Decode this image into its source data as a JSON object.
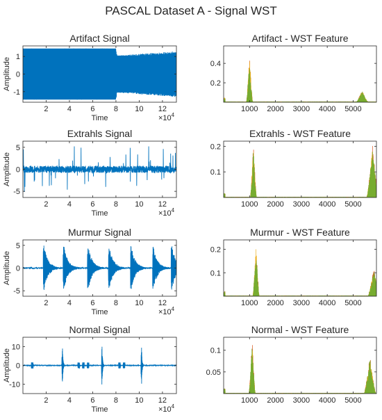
{
  "figure_title": "PASCAL Dataset A - Signal WST",
  "colors": {
    "signal": "#0072BD",
    "wst_main": "#77AC30",
    "wst_alt": "#EDB120",
    "wst_red": "#D95319",
    "axes": "#262626",
    "background": "#ffffff"
  },
  "chart_data": [
    {
      "id": "artifact-signal",
      "type": "line",
      "title": "Artifact Signal",
      "xlabel": "Time",
      "ylabel": "Amplitude",
      "x_exponent": "4",
      "xlim": [
        0,
        13.2
      ],
      "ylim": [
        -1.6,
        1.6
      ],
      "xticks": [
        2,
        4,
        6,
        8,
        10,
        12
      ],
      "xticklabels": [
        "2",
        "4",
        "6",
        "8",
        "10",
        "12"
      ],
      "yticks": [
        -1,
        0,
        1
      ],
      "yticklabels": [
        "-1",
        "0",
        "1"
      ],
      "series": [
        {
          "style": "dense oscillation",
          "envelope": [
            [
              0,
              1.45
            ],
            [
              8,
              1.45
            ],
            [
              8.1,
              1.05
            ],
            [
              13.2,
              1.3
            ]
          ]
        }
      ]
    },
    {
      "id": "artifact-wst",
      "type": "line",
      "title": "Artifact - WST Feature",
      "xlabel": "",
      "ylabel": "",
      "xlim": [
        0,
        5900
      ],
      "ylim": [
        0,
        0.58
      ],
      "xticks": [
        1000,
        2000,
        3000,
        4000,
        5000
      ],
      "xticklabels": [
        "1000",
        "2000",
        "3000",
        "4000",
        "5000"
      ],
      "yticks": [
        0.2,
        0.4
      ],
      "yticklabels": [
        "0.2",
        "0.4"
      ],
      "series": [
        {
          "peaks": [
            [
              1000,
              0.48
            ],
            [
              5350,
              0.12
            ]
          ]
        }
      ]
    },
    {
      "id": "extrahls-signal",
      "type": "line",
      "title": "Extrahls Signal",
      "xlabel": "Time",
      "ylabel": "Amplitude",
      "x_exponent": "4",
      "xlim": [
        0,
        13.2
      ],
      "ylim": [
        -6.4,
        6.4
      ],
      "xticks": [
        2,
        4,
        6,
        8,
        10,
        12
      ],
      "xticklabels": [
        "2",
        "4",
        "6",
        "8",
        "10",
        "12"
      ],
      "yticks": [
        -5,
        0,
        5
      ],
      "yticklabels": [
        "-5",
        "0",
        "5"
      ],
      "series": [
        {
          "spike_amplitude": 5.5
        }
      ]
    },
    {
      "id": "extrahls-wst",
      "type": "line",
      "title": "Extrahls - WST Feature",
      "xlabel": "",
      "ylabel": "",
      "xlim": [
        0,
        5900
      ],
      "ylim": [
        0,
        0.22
      ],
      "xticks": [
        1000,
        2000,
        3000,
        4000,
        5000
      ],
      "xticklabels": [
        "1000",
        "2000",
        "3000",
        "4000",
        "5000"
      ],
      "yticks": [
        0.1,
        0.2
      ],
      "yticklabels": [
        "0.1",
        "0.2"
      ],
      "series": [
        {
          "peaks": [
            [
              1150,
              0.2
            ],
            [
              5750,
              0.2
            ]
          ]
        }
      ]
    },
    {
      "id": "murmur-signal",
      "type": "line",
      "title": "Murmur Signal",
      "xlabel": "Time",
      "ylabel": "Amplitude",
      "x_exponent": "4",
      "xlim": [
        0,
        13.2
      ],
      "ylim": [
        -6.2,
        6.2
      ],
      "xticks": [
        2,
        4,
        6,
        8,
        10,
        12
      ],
      "xticklabels": [
        "2",
        "4",
        "6",
        "8",
        "10",
        "12"
      ],
      "yticks": [
        -5,
        0,
        5
      ],
      "yticklabels": [
        "-5",
        "0",
        "5"
      ],
      "series": [
        {
          "beats": [
            1.8,
            3.5,
            5.6,
            7.4,
            9.3,
            11.2,
            12.8
          ]
        }
      ]
    },
    {
      "id": "murmur-wst",
      "type": "line",
      "title": "Murmur - WST Feature",
      "xlabel": "",
      "ylabel": "",
      "xlim": [
        0,
        5900
      ],
      "ylim": [
        0,
        0.24
      ],
      "xticks": [
        1000,
        2000,
        3000,
        4000,
        5000
      ],
      "xticklabels": [
        "1000",
        "2000",
        "3000",
        "4000",
        "5000"
      ],
      "yticks": [
        0.1,
        0.2
      ],
      "yticklabels": [
        "0.1",
        "0.2"
      ],
      "series": [
        {
          "peaks": [
            [
              1250,
              0.22
            ],
            [
              5800,
              0.12
            ]
          ]
        }
      ]
    },
    {
      "id": "normal-signal",
      "type": "line",
      "title": "Normal Signal",
      "xlabel": "Time",
      "ylabel": "Amplitude",
      "x_exponent": "4",
      "xlim": [
        0,
        13.2
      ],
      "ylim": [
        -15,
        15
      ],
      "xticks": [
        2,
        4,
        6,
        8,
        10,
        12
      ],
      "xticklabels": [
        "2",
        "4",
        "6",
        "8",
        "10",
        "12"
      ],
      "yticks": [
        -10,
        0,
        10
      ],
      "yticklabels": [
        "-10",
        "0",
        "10"
      ],
      "series": [
        {
          "beats": [
            3.4,
            6.8,
            10.2
          ]
        }
      ]
    },
    {
      "id": "normal-wst",
      "type": "line",
      "title": "Normal - WST Feature",
      "xlabel": "",
      "ylabel": "",
      "xlim": [
        0,
        5900
      ],
      "ylim": [
        0,
        0.13
      ],
      "xticks": [
        1000,
        2000,
        3000,
        4000,
        5000
      ],
      "xticklabels": [
        "1000",
        "2000",
        "3000",
        "4000",
        "5000"
      ],
      "yticks": [
        0.05,
        0.1
      ],
      "yticklabels": [
        "0.05",
        "0.1"
      ],
      "series": [
        {
          "peaks": [
            [
              1100,
              0.125
            ],
            [
              5650,
              0.085
            ]
          ]
        }
      ]
    }
  ]
}
